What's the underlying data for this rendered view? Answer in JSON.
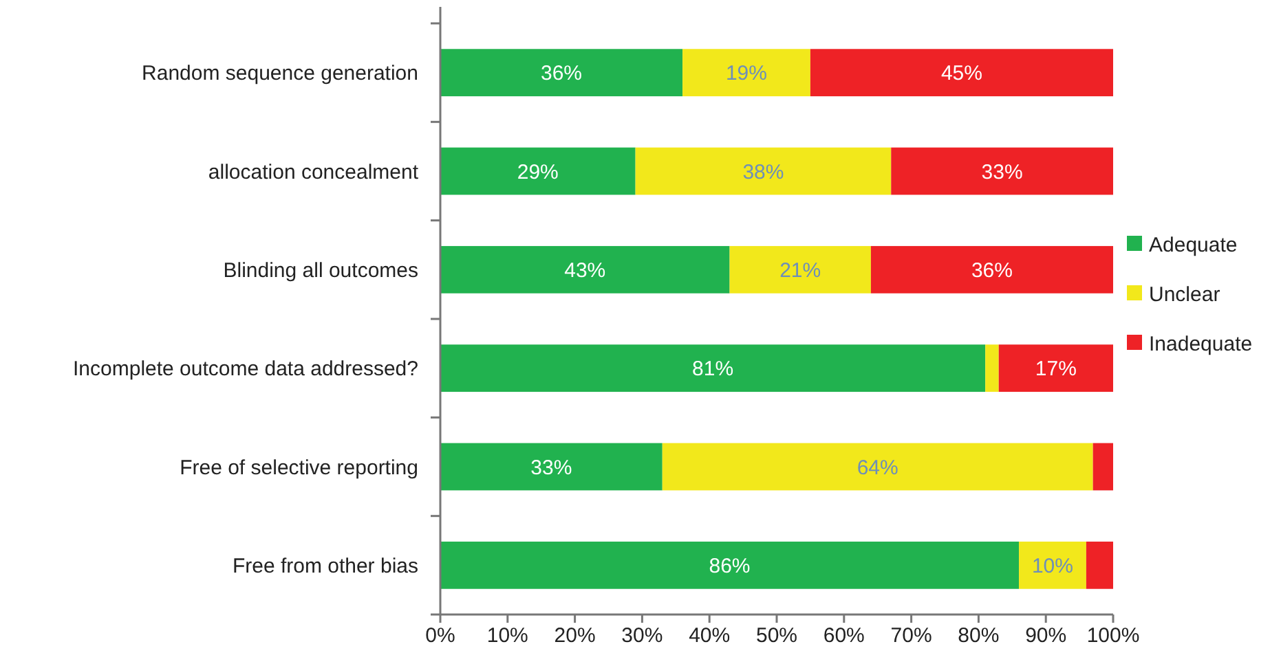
{
  "chart_data": {
    "type": "bar",
    "orientation": "horizontal",
    "stacked": true,
    "categories": [
      "Random sequence generation",
      "allocation concealment",
      "Blinding all outcomes",
      "Incomplete outcome data addressed?",
      "Free of selective reporting",
      "Free from other bias"
    ],
    "series": [
      {
        "name": "Adequate",
        "color": "#21b24f",
        "values": [
          36,
          29,
          43,
          81,
          33,
          86
        ],
        "value_labels": [
          "36%",
          "29%",
          "43%",
          "81%",
          "33%",
          "86%"
        ]
      },
      {
        "name": "Unclear",
        "color": "#f2e81b",
        "values": [
          19,
          38,
          21,
          2,
          64,
          10
        ],
        "value_labels": [
          "19%",
          "38%",
          "21%",
          null,
          "64%",
          "10%"
        ]
      },
      {
        "name": "Inadequate",
        "color": "#ee2226",
        "values": [
          45,
          33,
          36,
          17,
          3,
          4
        ],
        "value_labels": [
          "45%",
          "33%",
          "36%",
          "17%",
          null,
          null
        ]
      }
    ],
    "xlim": [
      0,
      100
    ],
    "xticks": [
      {
        "value": 0,
        "label": "0%"
      },
      {
        "value": 10,
        "label": "10%"
      },
      {
        "value": 20,
        "label": "20%"
      },
      {
        "value": 30,
        "label": "30%"
      },
      {
        "value": 40,
        "label": "40%"
      },
      {
        "value": 50,
        "label": "50%"
      },
      {
        "value": 60,
        "label": "60%"
      },
      {
        "value": 70,
        "label": "70%"
      },
      {
        "value": 80,
        "label": "80%"
      },
      {
        "value": 90,
        "label": "90%"
      },
      {
        "value": 100,
        "label": "100%"
      }
    ],
    "legend": "right"
  }
}
